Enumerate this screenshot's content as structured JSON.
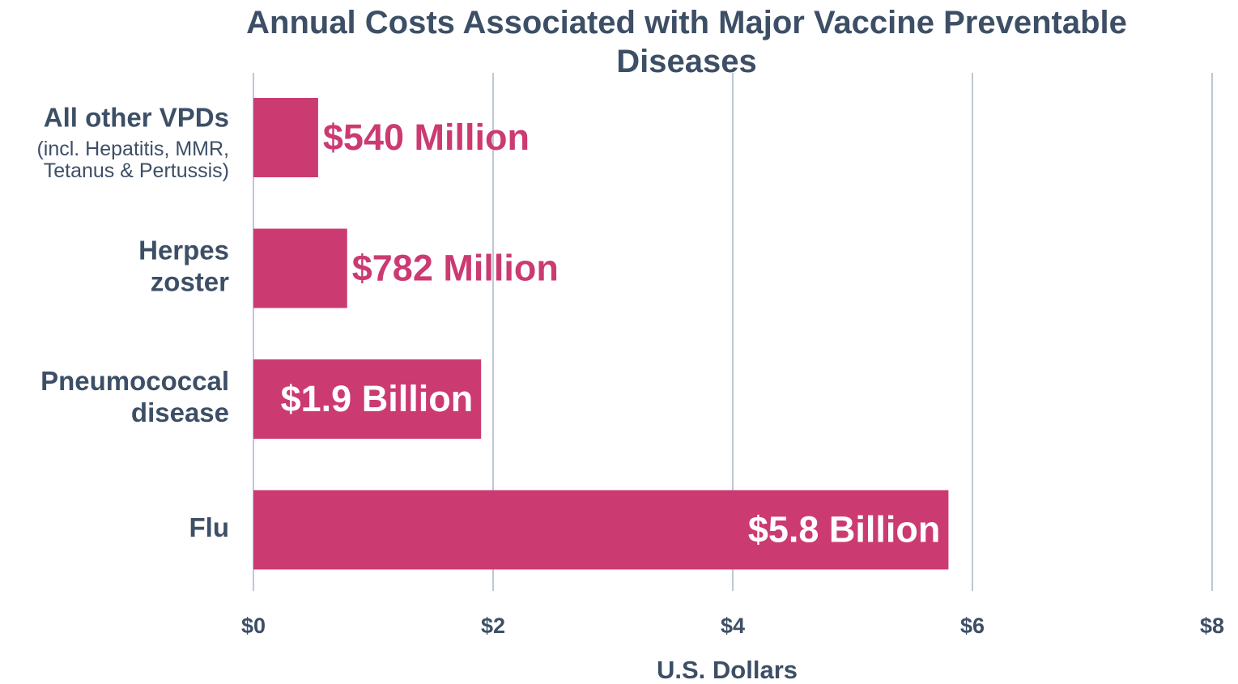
{
  "chart_data": {
    "type": "bar",
    "orientation": "horizontal",
    "title": "Annual Costs Associated with Major Vaccine Preventable Diseases",
    "x_label": "U.S. Dollars",
    "categories": [
      "All other VPDs",
      "Herpes zoster",
      "Pneumococcal disease",
      "Flu"
    ],
    "category_notes": [
      "(incl. Hepatitis, MMR, Tetanus & Pertussis)",
      null,
      null,
      null
    ],
    "values": [
      0.54,
      0.782,
      1.9,
      5.8
    ],
    "value_labels": [
      "$540 Million",
      "$782 Million",
      "$1.9 Billion",
      "$5.8 Billion"
    ],
    "color": "#cc3a72",
    "xlim": [
      0,
      8
    ],
    "xticks": [
      {
        "value": 0,
        "label": "$0"
      },
      {
        "value": 2,
        "label": "$2"
      },
      {
        "value": 4,
        "label": "$4"
      },
      {
        "value": 6,
        "label": "$6"
      },
      {
        "value": 8,
        "label": "$8"
      }
    ],
    "grid": true
  }
}
